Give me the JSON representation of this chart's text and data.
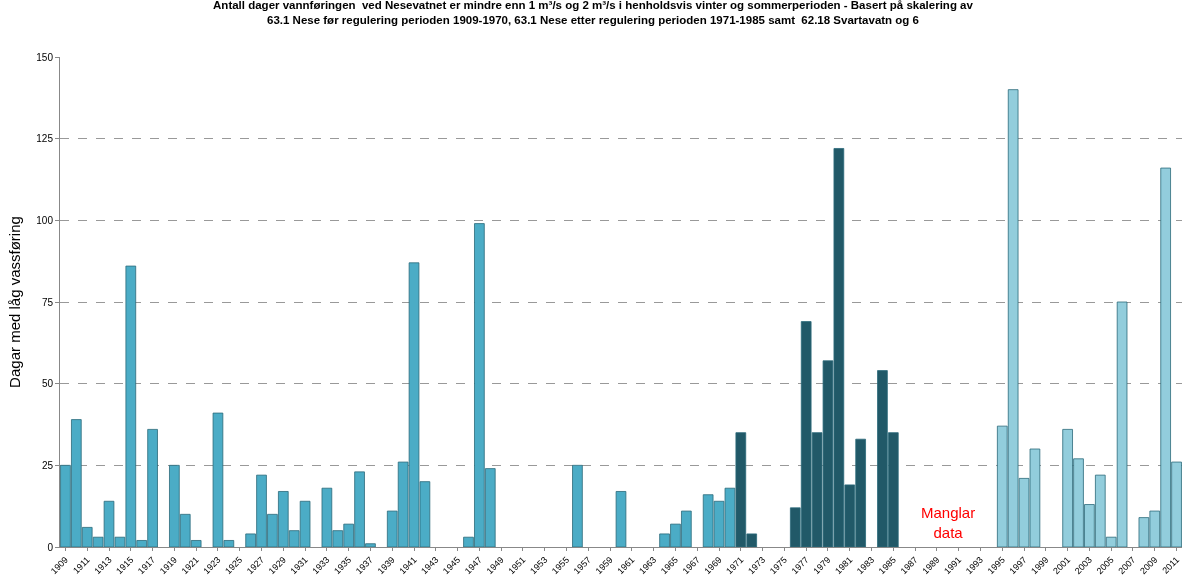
{
  "chart_data": {
    "type": "bar",
    "title": "Antall dager vannføringen  ved Nesevatnet er mindre enn 1 m³/s og 2 m³/s i henholdsvis vinter og sommerperioden - Basert på skalering av\n63.1 Nese før regulering perioden 1909-1970, 63.1 Nese etter regulering perioden 1971-1985 samt  62.18 Svartavatn og 6",
    "ylabel": "Dagar med låg vassføring",
    "categories": [
      "1909",
      null,
      "1911",
      null,
      "1913",
      null,
      "1915",
      null,
      "1917",
      null,
      "1919",
      null,
      "1921",
      null,
      "1923",
      null,
      "1925",
      null,
      "1927",
      null,
      "1929",
      null,
      "1931",
      null,
      "1933",
      null,
      "1935",
      null,
      "1937",
      null,
      "1939",
      null,
      "1941",
      null,
      "1943",
      null,
      "1945",
      null,
      "1947",
      null,
      "1949",
      null,
      "1951",
      null,
      "1953",
      null,
      "1955",
      null,
      "1957",
      null,
      "1959",
      null,
      "1961",
      null,
      "1963",
      null,
      "1965",
      null,
      "1967",
      null,
      "1969",
      null,
      "1971",
      null,
      "1973",
      null,
      "1975",
      null,
      "1977",
      null,
      "1979",
      null,
      "1981",
      null,
      "1983",
      null,
      "1985",
      null,
      "1987",
      null,
      "1989",
      null,
      "1991",
      null,
      "1993",
      null,
      "1995",
      null,
      "1997",
      null,
      "1999",
      null,
      "2001",
      null,
      "2003",
      null,
      "2005",
      null,
      "2007",
      null,
      "2009",
      null,
      "2011"
    ],
    "series": [
      {
        "color": "#4bacc6",
        "values": [
          25,
          39,
          6,
          3,
          14,
          3,
          86,
          2,
          36,
          null,
          25,
          10,
          2,
          null,
          41,
          2,
          null,
          4,
          22,
          10,
          17,
          5,
          14,
          null,
          18,
          5,
          7,
          23,
          1,
          null,
          11,
          26,
          87,
          20,
          null,
          null,
          null,
          3,
          99,
          24,
          null,
          null,
          null,
          null,
          null,
          null,
          null,
          25,
          null,
          null,
          null,
          17,
          null,
          null,
          null,
          4,
          7,
          11,
          null,
          16,
          14,
          18,
          null,
          null,
          null,
          null,
          null,
          null,
          null,
          null,
          null,
          null,
          null,
          null,
          null,
          null,
          null,
          null,
          null,
          null,
          null,
          null,
          null,
          null,
          null,
          null,
          null,
          null,
          null,
          null,
          null,
          null,
          null,
          null,
          null,
          null,
          null,
          null,
          null,
          null,
          null,
          null,
          null
        ]
      },
      {
        "color": "#215968",
        "values": [
          null,
          null,
          null,
          null,
          null,
          null,
          null,
          null,
          null,
          null,
          null,
          null,
          null,
          null,
          null,
          null,
          null,
          null,
          null,
          null,
          null,
          null,
          null,
          null,
          null,
          null,
          null,
          null,
          null,
          null,
          null,
          null,
          null,
          null,
          null,
          null,
          null,
          null,
          null,
          null,
          null,
          null,
          null,
          null,
          null,
          null,
          null,
          null,
          null,
          null,
          null,
          null,
          null,
          null,
          null,
          null,
          null,
          null,
          null,
          null,
          null,
          null,
          35,
          4,
          null,
          null,
          null,
          12,
          69,
          35,
          57,
          122,
          19,
          33,
          null,
          54,
          35,
          null,
          null,
          null,
          null,
          null,
          null,
          null,
          null,
          null,
          null,
          null,
          null,
          null,
          null,
          null,
          null,
          null,
          null,
          null,
          null,
          null,
          null,
          null,
          null,
          null,
          null
        ]
      },
      {
        "color": "#92cddc",
        "values": [
          null,
          null,
          null,
          null,
          null,
          null,
          null,
          null,
          null,
          null,
          null,
          null,
          null,
          null,
          null,
          null,
          null,
          null,
          null,
          null,
          null,
          null,
          null,
          null,
          null,
          null,
          null,
          null,
          null,
          null,
          null,
          null,
          null,
          null,
          null,
          null,
          null,
          null,
          null,
          null,
          null,
          null,
          null,
          null,
          null,
          null,
          null,
          null,
          null,
          null,
          null,
          null,
          null,
          null,
          null,
          null,
          null,
          null,
          null,
          null,
          null,
          null,
          null,
          null,
          null,
          null,
          null,
          null,
          null,
          null,
          null,
          null,
          null,
          null,
          null,
          null,
          null,
          null,
          null,
          null,
          null,
          null,
          null,
          null,
          null,
          null,
          37,
          140,
          21,
          30,
          null,
          null,
          36,
          27,
          13,
          22,
          3,
          75,
          null,
          9,
          11,
          116,
          26
        ]
      }
    ],
    "ylim": [
      0,
      150
    ],
    "yticks": [
      0,
      25,
      50,
      75,
      100,
      125,
      150
    ],
    "grid": "y",
    "annotations": [
      "Manglar\ndata"
    ]
  }
}
